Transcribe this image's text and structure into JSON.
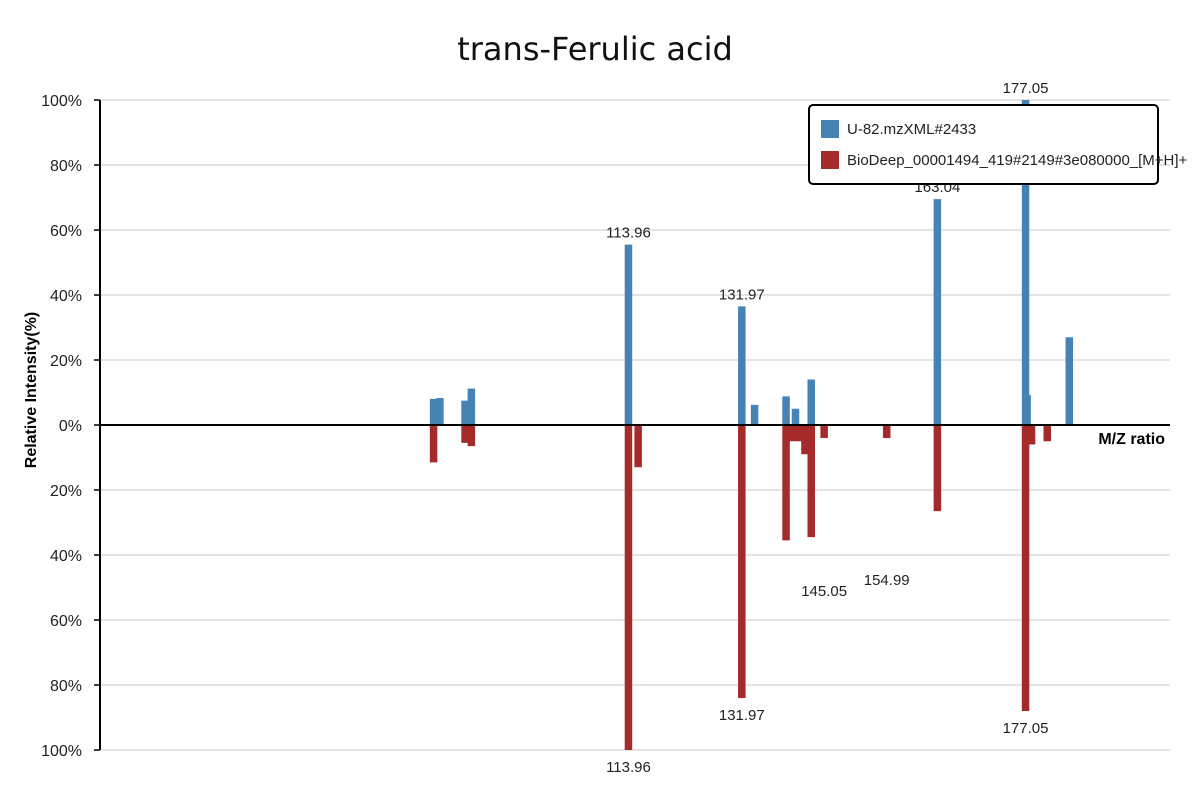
{
  "chart_data": {
    "type": "bar",
    "title": "trans-Ferulic acid",
    "xlabel": "M/Z ratio",
    "ylabel": "Relative Intensity(%)",
    "ylim": [
      -100,
      100
    ],
    "y_ticks": [
      100,
      80,
      60,
      40,
      20,
      0,
      -20,
      -40,
      -60,
      -80,
      -100
    ],
    "y_tick_labels": [
      "100%",
      "80%",
      "60%",
      "40%",
      "20%",
      "0%",
      "20%",
      "40%",
      "60%",
      "80%",
      "100%"
    ],
    "xlim": [
      30,
      200
    ],
    "grid": true,
    "legend_position": "top-right",
    "series": [
      {
        "name": "U-82.mzXML#2433",
        "color": "#4682b4",
        "direction": "up",
        "peaks": [
          {
            "mz": 83.0,
            "value": 8
          },
          {
            "mz": 84.0,
            "value": 8.3
          },
          {
            "mz": 88.0,
            "value": 7.5
          },
          {
            "mz": 89.0,
            "value": 11.2
          },
          {
            "mz": 113.96,
            "value": 55.5,
            "label": "113.96"
          },
          {
            "mz": 131.97,
            "value": 36.5,
            "label": "131.97"
          },
          {
            "mz": 134.0,
            "value": 6.2
          },
          {
            "mz": 139.0,
            "value": 8.8
          },
          {
            "mz": 140.5,
            "value": 5
          },
          {
            "mz": 143.0,
            "value": 14
          },
          {
            "mz": 163.04,
            "value": 69.5,
            "label": "163.04"
          },
          {
            "mz": 177.05,
            "value": 100,
            "label": "177.05"
          },
          {
            "mz": 177.3,
            "value": 9.2
          },
          {
            "mz": 184.0,
            "value": 27
          }
        ]
      },
      {
        "name": "BioDeep_00001494_419#2149#3e080000_[M+H]+",
        "color": "#a52a2a",
        "direction": "down",
        "peaks": [
          {
            "mz": 83.0,
            "value": 11.5
          },
          {
            "mz": 88.0,
            "value": 5.5
          },
          {
            "mz": 89.0,
            "value": 6.5
          },
          {
            "mz": 113.96,
            "value": 100,
            "label": "113.96"
          },
          {
            "mz": 115.5,
            "value": 13
          },
          {
            "mz": 131.97,
            "value": 84,
            "label": "131.97"
          },
          {
            "mz": 139.0,
            "value": 35.5
          },
          {
            "mz": 140.0,
            "value": 5
          },
          {
            "mz": 141.0,
            "value": 5
          },
          {
            "mz": 142.0,
            "value": 9
          },
          {
            "mz": 143.0,
            "value": 34.5
          },
          {
            "mz": 145.05,
            "value": 4,
            "label": "145.05",
            "label_dy": 136
          },
          {
            "mz": 154.99,
            "value": 4,
            "label": "154.99",
            "label_dy": 125
          },
          {
            "mz": 163.04,
            "value": 26.5
          },
          {
            "mz": 177.05,
            "value": 88,
            "label": "177.05"
          },
          {
            "mz": 178.0,
            "value": 6
          },
          {
            "mz": 180.5,
            "value": 5
          }
        ]
      }
    ]
  }
}
